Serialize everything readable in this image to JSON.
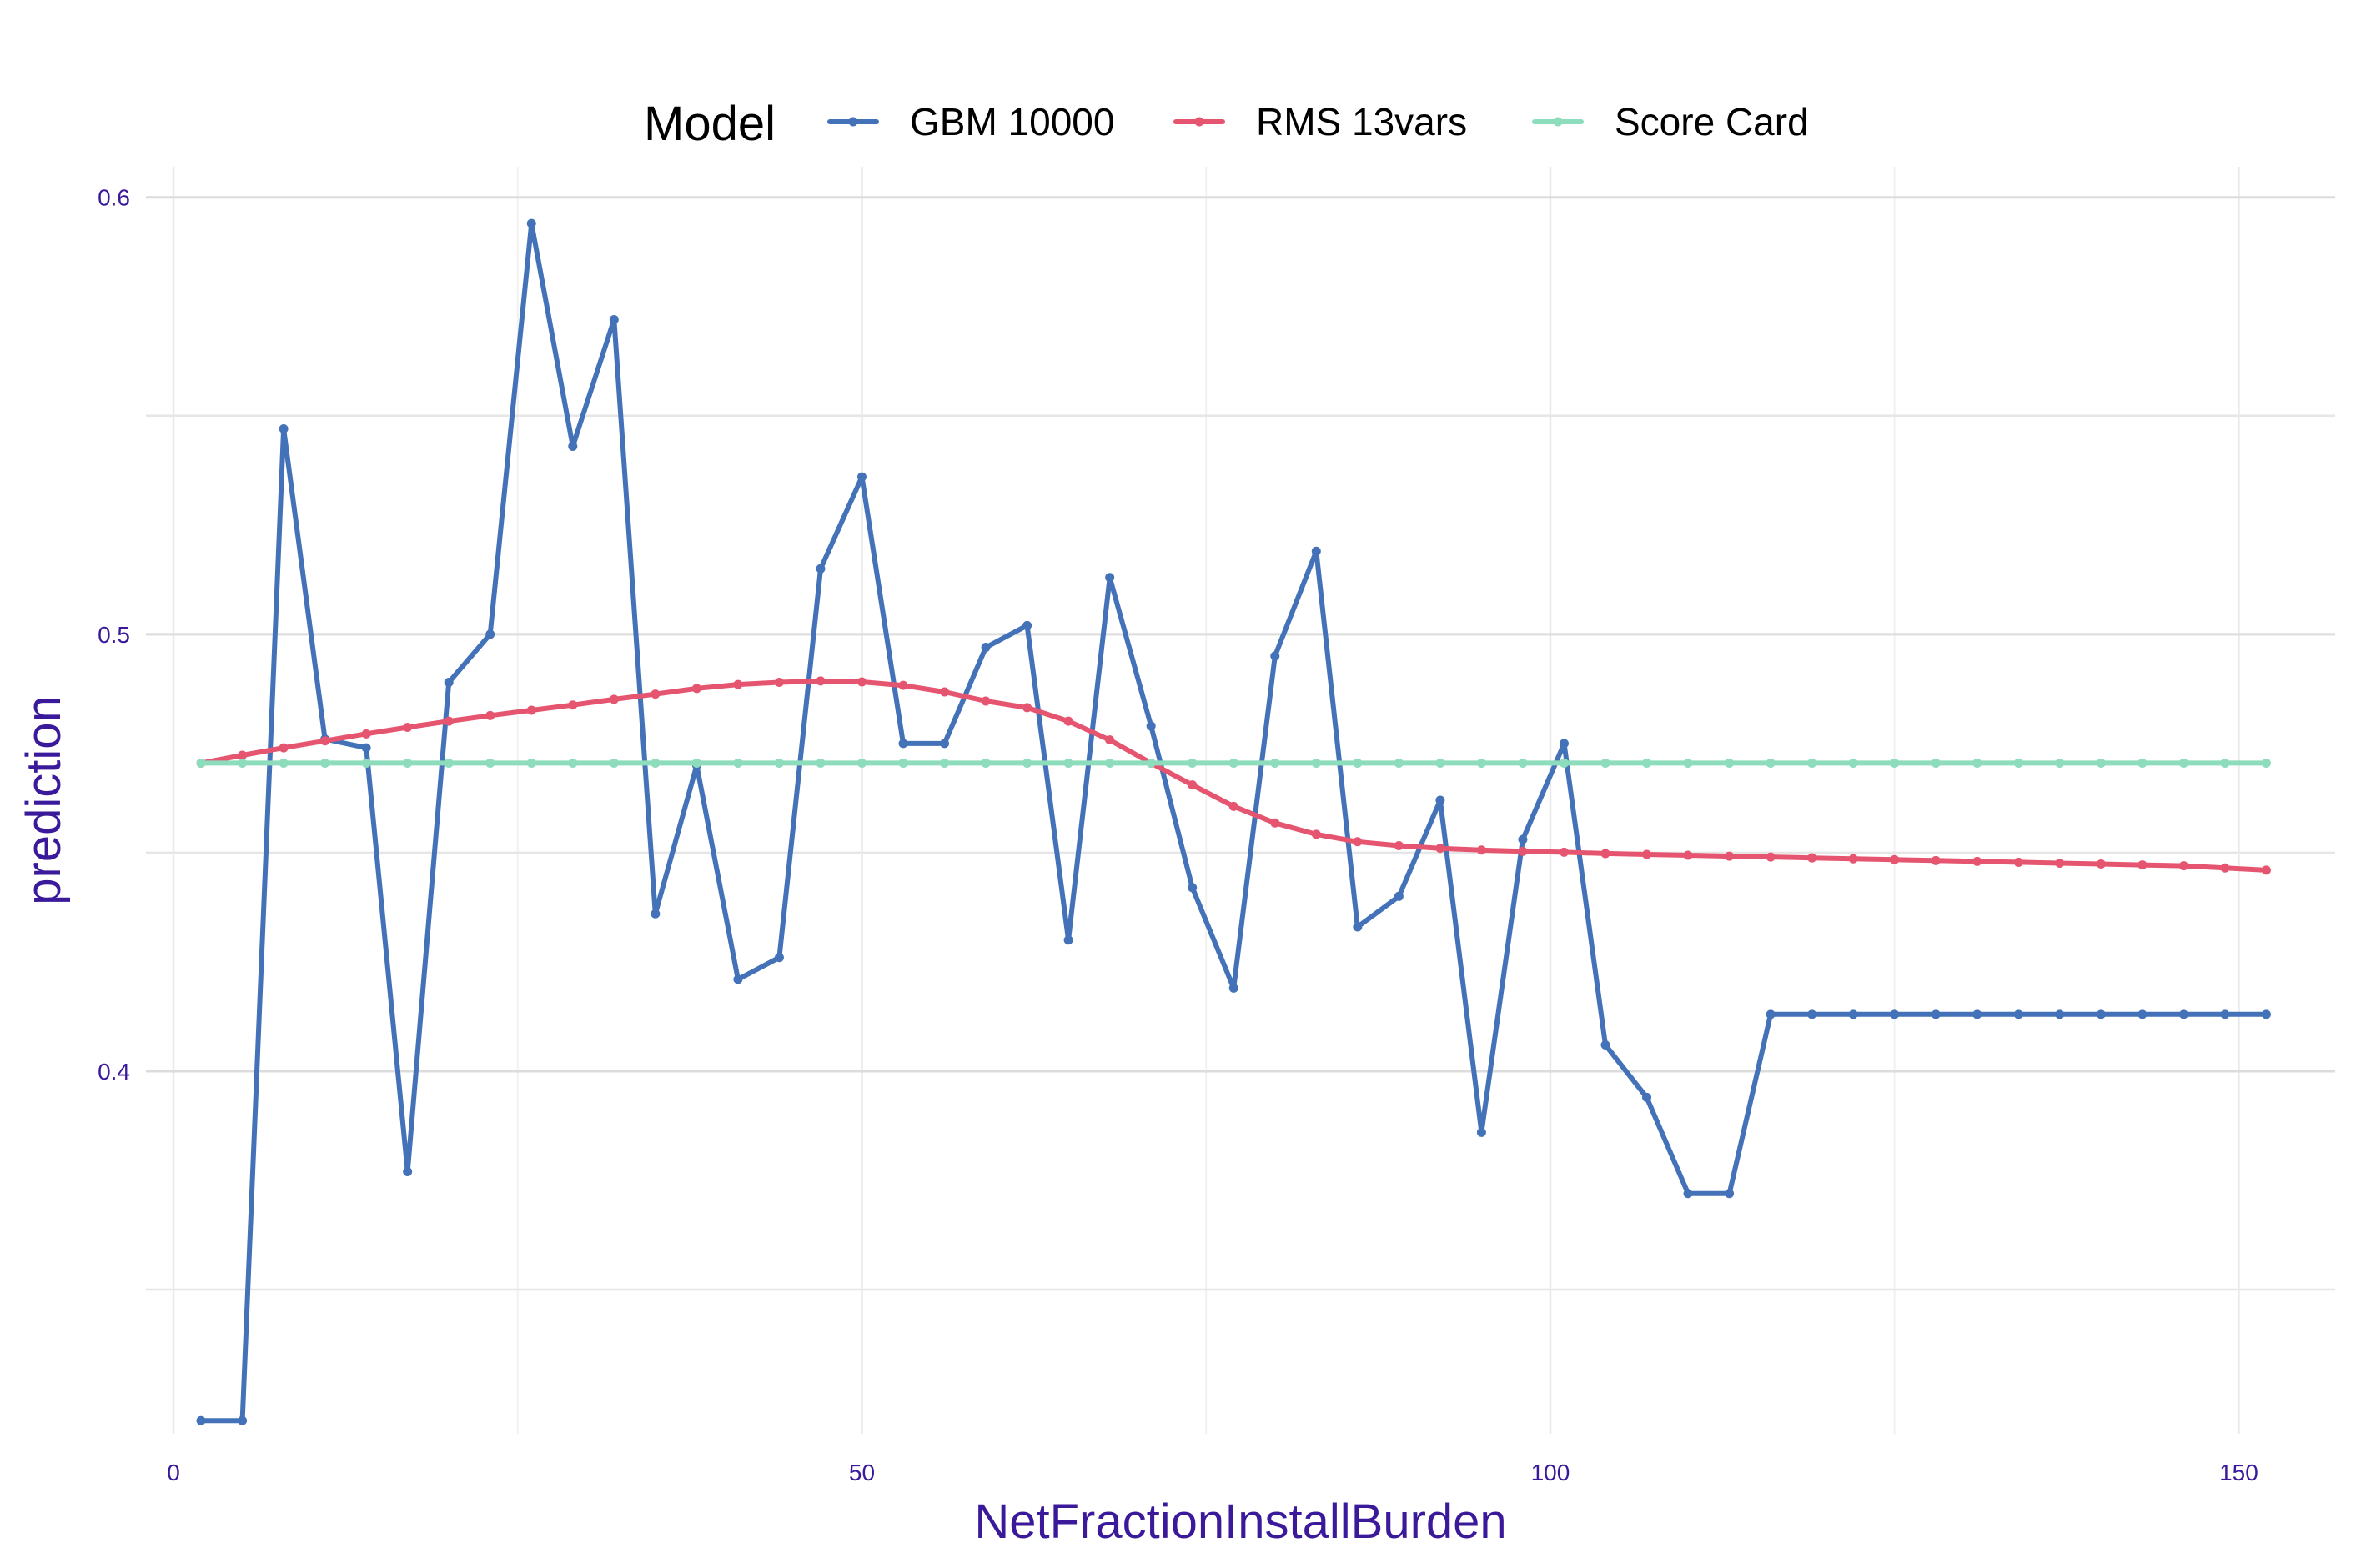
{
  "chart_data": {
    "type": "line",
    "xlabel": "NetFractionInstallBurden",
    "ylabel": "prediction",
    "xlim": [
      -2,
      157
    ],
    "ylim": [
      0.317,
      0.607
    ],
    "x_ticks": [
      0,
      50,
      100,
      150
    ],
    "x_tick_labels": [
      "0",
      "50",
      "100",
      "150"
    ],
    "x_minor_ticks": [
      25,
      75,
      125
    ],
    "y_ticks": [
      0.4,
      0.5,
      0.6
    ],
    "y_tick_labels": [
      "0.4",
      "0.5",
      "0.6"
    ],
    "y_minor_ticks": [
      0.35,
      0.45,
      0.55
    ],
    "grid": true,
    "legend": {
      "title": "Model",
      "position": "top"
    },
    "x": [
      2,
      5,
      8,
      11,
      14,
      17,
      20,
      23,
      26,
      29,
      32,
      35,
      38,
      41,
      44,
      47,
      50,
      53,
      56,
      59,
      62,
      65,
      68,
      71,
      74,
      77,
      80,
      83,
      86,
      89,
      92,
      95,
      98,
      101,
      104,
      107,
      110,
      113,
      116,
      119,
      122,
      125,
      128,
      131,
      134,
      137,
      140,
      143,
      146,
      149,
      152
    ],
    "series": [
      {
        "name": "GBM 10000",
        "color": "#4472b8",
        "values": [
          0.32,
          0.32,
          0.547,
          0.476,
          0.474,
          0.377,
          0.489,
          0.5,
          0.594,
          0.543,
          0.572,
          0.436,
          0.47,
          0.421,
          0.426,
          0.515,
          0.536,
          0.475,
          0.475,
          0.497,
          0.502,
          0.43,
          0.513,
          0.479,
          0.442,
          0.419,
          0.495,
          0.519,
          0.433,
          0.44,
          0.462,
          0.386,
          0.453,
          0.475,
          0.406,
          0.394,
          0.372,
          0.372,
          0.413,
          0.413,
          0.413,
          0.413,
          0.413,
          0.413,
          0.413,
          0.413,
          0.413,
          0.413,
          0.413,
          0.413,
          0.413
        ]
      },
      {
        "name": "RMS 13vars",
        "color": "#e6556f",
        "values": [
          0.4705,
          0.4723,
          0.474,
          0.4756,
          0.4772,
          0.4787,
          0.4801,
          0.4814,
          0.4826,
          0.4838,
          0.4851,
          0.4863,
          0.4876,
          0.4885,
          0.489,
          0.4893,
          0.4891,
          0.4883,
          0.4868,
          0.4847,
          0.4832,
          0.4801,
          0.4758,
          0.4705,
          0.4655,
          0.4606,
          0.4568,
          0.4542,
          0.4525,
          0.4516,
          0.451,
          0.4506,
          0.4503,
          0.4501,
          0.4498,
          0.4496,
          0.4494,
          0.4492,
          0.449,
          0.4488,
          0.4486,
          0.4484,
          0.4482,
          0.448,
          0.4478,
          0.4476,
          0.4474,
          0.4472,
          0.447,
          0.4465,
          0.446
        ]
      },
      {
        "name": "Score Card",
        "color": "#8ddcbc",
        "values": [
          0.4705,
          0.4705,
          0.4705,
          0.4705,
          0.4705,
          0.4705,
          0.4705,
          0.4705,
          0.4705,
          0.4705,
          0.4705,
          0.4705,
          0.4705,
          0.4705,
          0.4705,
          0.4705,
          0.4705,
          0.4705,
          0.4705,
          0.4705,
          0.4705,
          0.4705,
          0.4705,
          0.4705,
          0.4705,
          0.4705,
          0.4705,
          0.4705,
          0.4705,
          0.4705,
          0.4705,
          0.4705,
          0.4705,
          0.4705,
          0.4705,
          0.4705,
          0.4705,
          0.4705,
          0.4705,
          0.4705,
          0.4705,
          0.4705,
          0.4705,
          0.4705,
          0.4705,
          0.4705,
          0.4705,
          0.4705,
          0.4705,
          0.4705,
          0.4705
        ]
      }
    ]
  }
}
